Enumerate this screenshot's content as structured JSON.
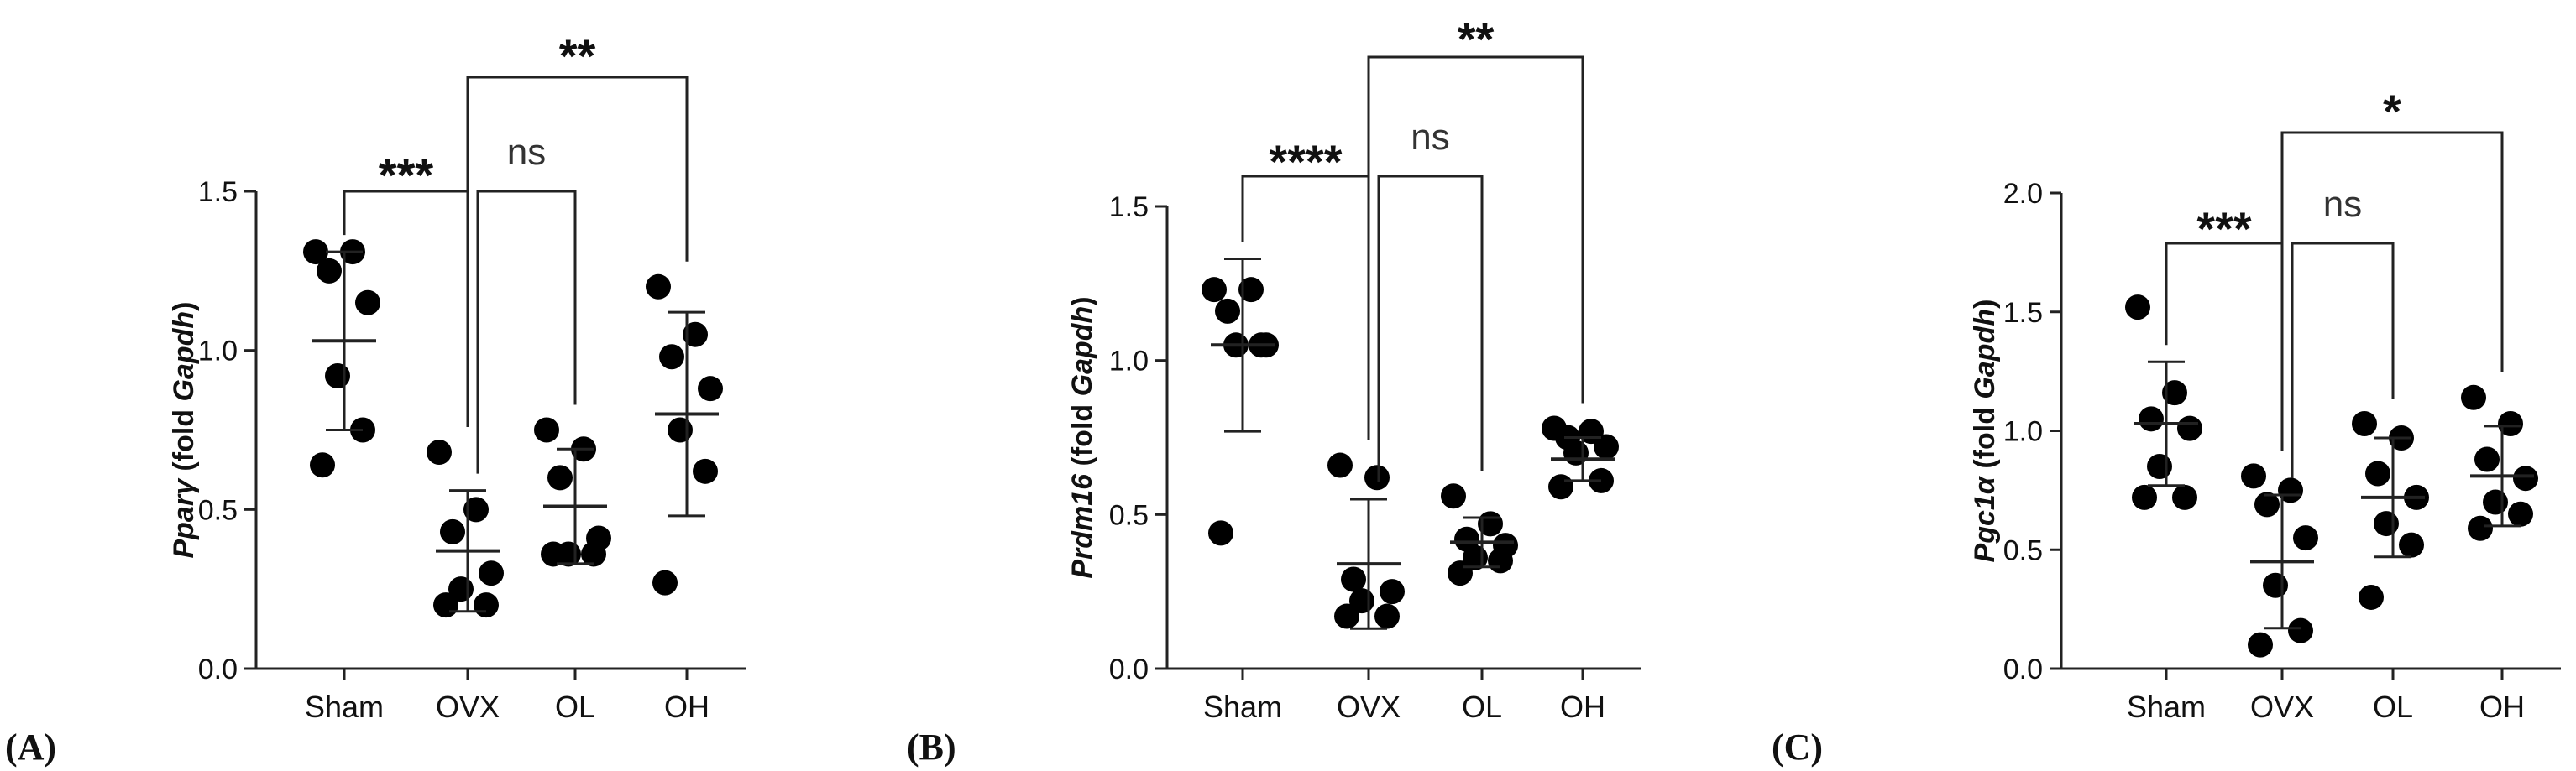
{
  "chart_data": [
    {
      "type": "scatter",
      "panel_label": "(A)",
      "ylabel_gene": "Pparγ",
      "ylabel_fold": " (fold ",
      "ylabel_ref": "Gapdh",
      "ylabel_close": ")",
      "ylim": [
        0,
        1.5
      ],
      "yticks": [
        "0.0",
        "0.5",
        "1.0",
        "1.5"
      ],
      "categories": [
        "Sham",
        "OVX",
        "OL",
        "OH"
      ],
      "points": [
        [
          1.31,
          1.31,
          1.25,
          1.15,
          0.92,
          0.75,
          0.64
        ],
        [
          0.68,
          0.5,
          0.43,
          0.3,
          0.25,
          0.2,
          0.2
        ],
        [
          0.75,
          0.69,
          0.6,
          0.41,
          0.36,
          0.36,
          0.36
        ],
        [
          1.2,
          1.05,
          0.98,
          0.88,
          0.75,
          0.62,
          0.27
        ]
      ],
      "means": [
        1.03,
        0.37,
        0.51,
        0.8
      ],
      "sd": [
        0.28,
        0.19,
        0.18,
        0.32
      ],
      "comparisons": [
        {
          "from": 0,
          "to": 1,
          "label": "***"
        },
        {
          "from": 1,
          "to": 2,
          "label": "ns"
        },
        {
          "from": 1,
          "to": 3,
          "label": "**"
        }
      ]
    },
    {
      "type": "scatter",
      "panel_label": "(B)",
      "ylabel_gene": "Prdm16",
      "ylabel_fold": " (fold ",
      "ylabel_ref": "Gapdh",
      "ylabel_close": ")",
      "ylim": [
        0,
        1.5
      ],
      "yticks": [
        "0.0",
        "0.5",
        "1.0",
        "1.5"
      ],
      "categories": [
        "Sham",
        "OVX",
        "OL",
        "OH"
      ],
      "points": [
        [
          1.23,
          1.23,
          1.16,
          1.05,
          1.05,
          1.05,
          0.44
        ],
        [
          0.66,
          0.62,
          0.29,
          0.25,
          0.22,
          0.17,
          0.17
        ],
        [
          0.56,
          0.47,
          0.42,
          0.4,
          0.36,
          0.35,
          0.31
        ],
        [
          0.78,
          0.77,
          0.75,
          0.72,
          0.7,
          0.61,
          0.59
        ]
      ],
      "means": [
        1.05,
        0.34,
        0.41,
        0.68
      ],
      "sd": [
        0.28,
        0.21,
        0.08,
        0.07
      ],
      "comparisons": [
        {
          "from": 0,
          "to": 1,
          "label": "****"
        },
        {
          "from": 1,
          "to": 2,
          "label": "ns"
        },
        {
          "from": 1,
          "to": 3,
          "label": "**"
        }
      ]
    },
    {
      "type": "scatter",
      "panel_label": "(C)",
      "ylabel_gene": "Pgc1α",
      "ylabel_fold": " (fold ",
      "ylabel_ref": "Gapdh",
      "ylabel_close": ")",
      "ylim": [
        0,
        2.0
      ],
      "yticks": [
        "0.0",
        "0.5",
        "1.0",
        "1.5",
        "2.0"
      ],
      "categories": [
        "Sham",
        "OVX",
        "OL",
        "OH"
      ],
      "points": [
        [
          1.52,
          1.16,
          1.05,
          1.01,
          0.85,
          0.72,
          0.72
        ],
        [
          0.81,
          0.75,
          0.69,
          0.55,
          0.35,
          0.16,
          0.1
        ],
        [
          1.03,
          0.97,
          0.82,
          0.72,
          0.61,
          0.52,
          0.3
        ],
        [
          1.14,
          1.03,
          0.88,
          0.8,
          0.7,
          0.65,
          0.59
        ]
      ],
      "means": [
        1.03,
        0.45,
        0.72,
        0.81
      ],
      "sd": [
        0.26,
        0.28,
        0.25,
        0.21
      ],
      "comparisons": [
        {
          "from": 0,
          "to": 1,
          "label": "***"
        },
        {
          "from": 1,
          "to": 2,
          "label": "ns"
        },
        {
          "from": 1,
          "to": 3,
          "label": "*"
        }
      ]
    }
  ]
}
